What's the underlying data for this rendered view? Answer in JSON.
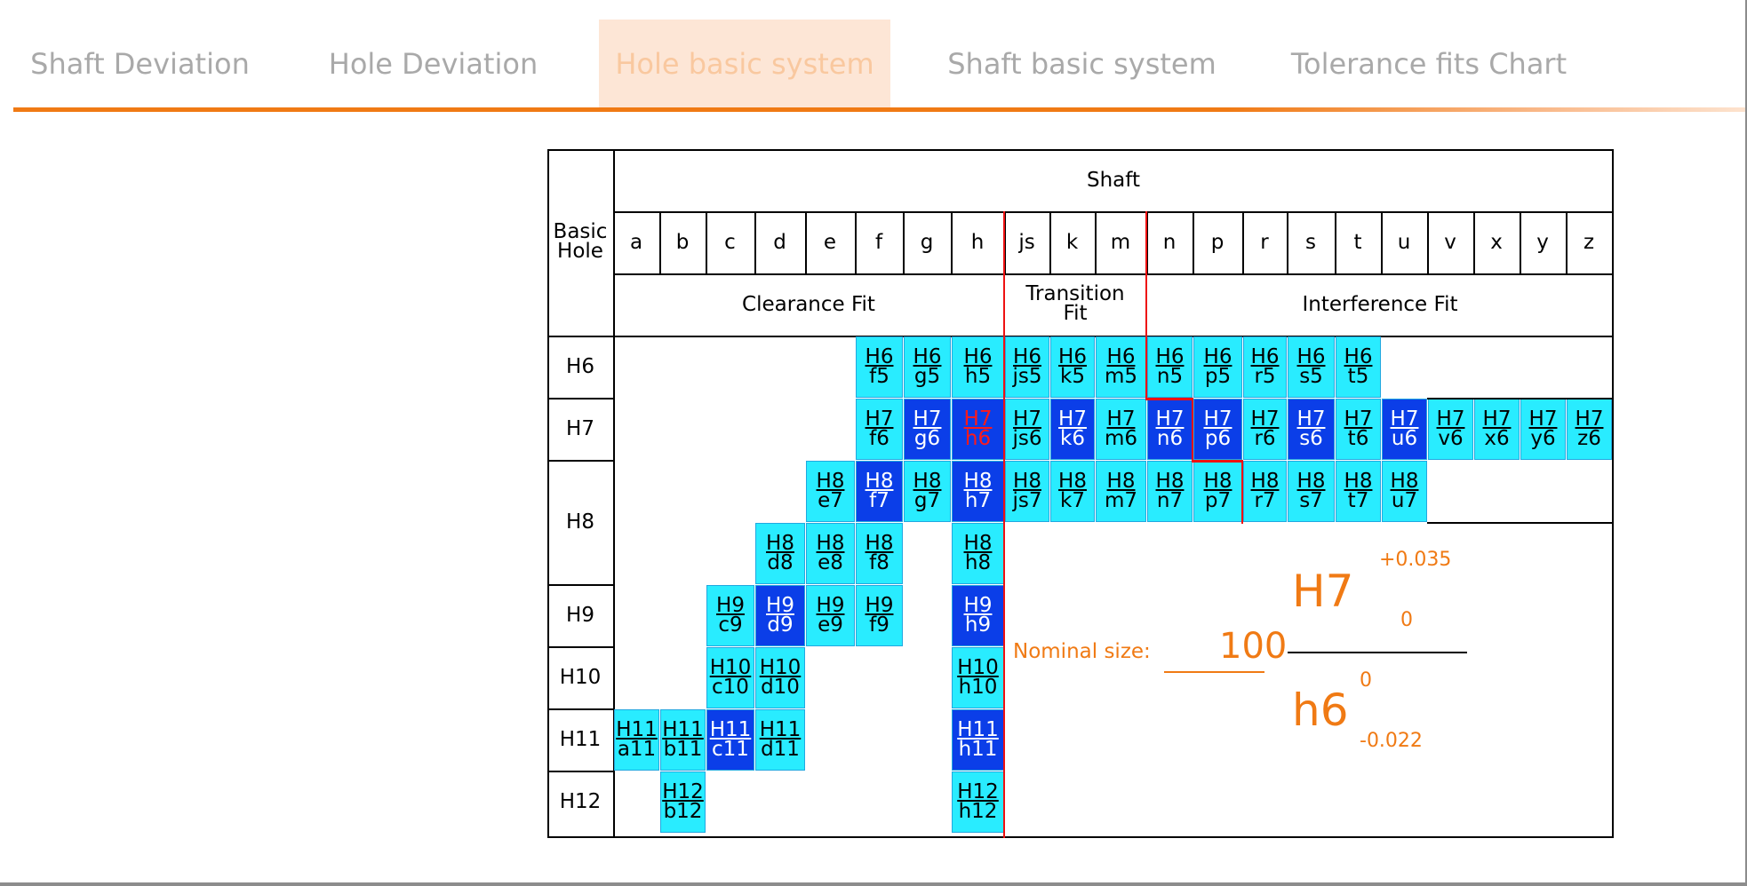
{
  "tabs": [
    {
      "label": "Shaft Deviation",
      "active": false
    },
    {
      "label": "Hole Deviation",
      "active": false
    },
    {
      "label": "Hole basic system",
      "active": true
    },
    {
      "label": "Shaft basic system",
      "active": false
    },
    {
      "label": "Tolerance fits Chart",
      "active": false
    }
  ],
  "colors": {
    "accent": "#f07a14",
    "cell_light": "#29ecff",
    "cell_dark": "#0b3ee8",
    "boundary": "#ee1111",
    "selected_text": "#ff1a1a"
  },
  "chart": {
    "shaft_header": "Shaft",
    "basic_hole_line1": "Basic",
    "basic_hole_line2": "Hole",
    "shaft_letters": [
      "a",
      "b",
      "c",
      "d",
      "e",
      "f",
      "g",
      "h",
      "js",
      "k",
      "m",
      "n",
      "p",
      "r",
      "s",
      "t",
      "u",
      "v",
      "x",
      "y",
      "z"
    ],
    "hole_rows": [
      "H6",
      "H7",
      "H8",
      "H9",
      "H10",
      "H11",
      "H12"
    ],
    "fit_labels": {
      "clearance": "Clearance Fit",
      "transition_line1": "Transition",
      "transition_line2": "Fit",
      "interference": "Interference Fit"
    },
    "fits": [
      {
        "hole": "H6",
        "shaft": "f5",
        "style": "light"
      },
      {
        "hole": "H6",
        "shaft": "g5",
        "style": "light"
      },
      {
        "hole": "H6",
        "shaft": "h5",
        "style": "light"
      },
      {
        "hole": "H6",
        "shaft": "js5",
        "style": "light"
      },
      {
        "hole": "H6",
        "shaft": "k5",
        "style": "light"
      },
      {
        "hole": "H6",
        "shaft": "m5",
        "style": "light"
      },
      {
        "hole": "H6",
        "shaft": "n5",
        "style": "light"
      },
      {
        "hole": "H6",
        "shaft": "p5",
        "style": "light"
      },
      {
        "hole": "H6",
        "shaft": "r5",
        "style": "light"
      },
      {
        "hole": "H6",
        "shaft": "s5",
        "style": "light"
      },
      {
        "hole": "H6",
        "shaft": "t5",
        "style": "light"
      },
      {
        "hole": "H7",
        "shaft": "f6",
        "style": "light"
      },
      {
        "hole": "H7",
        "shaft": "g6",
        "style": "dark"
      },
      {
        "hole": "H7",
        "shaft": "h6",
        "style": "dark",
        "selected": true
      },
      {
        "hole": "H7",
        "shaft": "js6",
        "style": "light"
      },
      {
        "hole": "H7",
        "shaft": "k6",
        "style": "dark"
      },
      {
        "hole": "H7",
        "shaft": "m6",
        "style": "light"
      },
      {
        "hole": "H7",
        "shaft": "n6",
        "style": "dark"
      },
      {
        "hole": "H7",
        "shaft": "p6",
        "style": "dark"
      },
      {
        "hole": "H7",
        "shaft": "r6",
        "style": "light"
      },
      {
        "hole": "H7",
        "shaft": "s6",
        "style": "dark"
      },
      {
        "hole": "H7",
        "shaft": "t6",
        "style": "light"
      },
      {
        "hole": "H7",
        "shaft": "u6",
        "style": "dark"
      },
      {
        "hole": "H7",
        "shaft": "v6",
        "style": "light"
      },
      {
        "hole": "H7",
        "shaft": "x6",
        "style": "light"
      },
      {
        "hole": "H7",
        "shaft": "y6",
        "style": "light"
      },
      {
        "hole": "H7",
        "shaft": "z6",
        "style": "light"
      },
      {
        "hole": "H8",
        "shaft": "e7",
        "style": "light"
      },
      {
        "hole": "H8",
        "shaft": "f7",
        "style": "dark"
      },
      {
        "hole": "H8",
        "shaft": "g7",
        "style": "light"
      },
      {
        "hole": "H8",
        "shaft": "h7",
        "style": "dark"
      },
      {
        "hole": "H8",
        "shaft": "js7",
        "style": "light"
      },
      {
        "hole": "H8",
        "shaft": "k7",
        "style": "light"
      },
      {
        "hole": "H8",
        "shaft": "m7",
        "style": "light"
      },
      {
        "hole": "H8",
        "shaft": "n7",
        "style": "light"
      },
      {
        "hole": "H8",
        "shaft": "p7",
        "style": "light"
      },
      {
        "hole": "H8",
        "shaft": "r7",
        "style": "light"
      },
      {
        "hole": "H8",
        "shaft": "s7",
        "style": "light"
      },
      {
        "hole": "H8",
        "shaft": "t7",
        "style": "light"
      },
      {
        "hole": "H8",
        "shaft": "u7",
        "style": "light"
      },
      {
        "hole": "H8",
        "shaft": "d8",
        "style": "light"
      },
      {
        "hole": "H8",
        "shaft": "e8",
        "style": "light"
      },
      {
        "hole": "H8",
        "shaft": "f8",
        "style": "light"
      },
      {
        "hole": "H8",
        "shaft": "h8",
        "style": "light"
      },
      {
        "hole": "H9",
        "shaft": "c9",
        "style": "light"
      },
      {
        "hole": "H9",
        "shaft": "d9",
        "style": "dark"
      },
      {
        "hole": "H9",
        "shaft": "e9",
        "style": "light"
      },
      {
        "hole": "H9",
        "shaft": "f9",
        "style": "light"
      },
      {
        "hole": "H9",
        "shaft": "h9",
        "style": "dark"
      },
      {
        "hole": "H10",
        "shaft": "c10",
        "style": "light"
      },
      {
        "hole": "H10",
        "shaft": "d10",
        "style": "light"
      },
      {
        "hole": "H10",
        "shaft": "h10",
        "style": "light"
      },
      {
        "hole": "H11",
        "shaft": "a11",
        "style": "light"
      },
      {
        "hole": "H11",
        "shaft": "b11",
        "style": "light"
      },
      {
        "hole": "H11",
        "shaft": "c11",
        "style": "dark"
      },
      {
        "hole": "H11",
        "shaft": "d11",
        "style": "light"
      },
      {
        "hole": "H11",
        "shaft": "h11",
        "style": "dark"
      },
      {
        "hole": "H12",
        "shaft": "b12",
        "style": "light"
      },
      {
        "hole": "H12",
        "shaft": "h12",
        "style": "light"
      }
    ],
    "detail": {
      "nominal_label": "Nominal size:",
      "nominal_value": "100",
      "hole_fit": "H7",
      "hole_upper": "+0.035",
      "hole_lower": "0",
      "shaft_fit": "h6",
      "shaft_upper": "0",
      "shaft_lower": "-0.022"
    }
  }
}
